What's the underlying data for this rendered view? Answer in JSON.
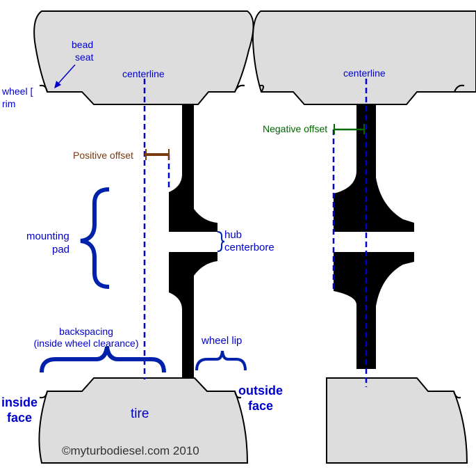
{
  "labels": {
    "bead_seat": [
      "bead",
      "seat"
    ],
    "wheel_rim": [
      "wheel [",
      "rim"
    ],
    "centerline_left": "centerline",
    "centerline_right": "centerline",
    "positive_offset": "Positive offset",
    "negative_offset": "Negative offset",
    "mounting_pad": [
      "mounting",
      "pad"
    ],
    "hub_centerbore": [
      "hub",
      "centerbore"
    ],
    "backspacing": [
      "backspacing",
      "(inside wheel clearance)"
    ],
    "wheel_lip": "wheel lip",
    "inside_face": [
      "inside",
      "face"
    ],
    "outside_face": [
      "outside",
      "face"
    ],
    "tire": "tire",
    "copyright": "©myturbodiesel.com 2010"
  },
  "colors": {
    "tire_fill": "#dddddd",
    "wheel_fill": "#000000",
    "label_blue": "#0000cc",
    "brace_blue": "#0022aa",
    "positive_offset": "#7a3a10",
    "negative_offset": "#006600",
    "copyright_text": "#333333"
  }
}
